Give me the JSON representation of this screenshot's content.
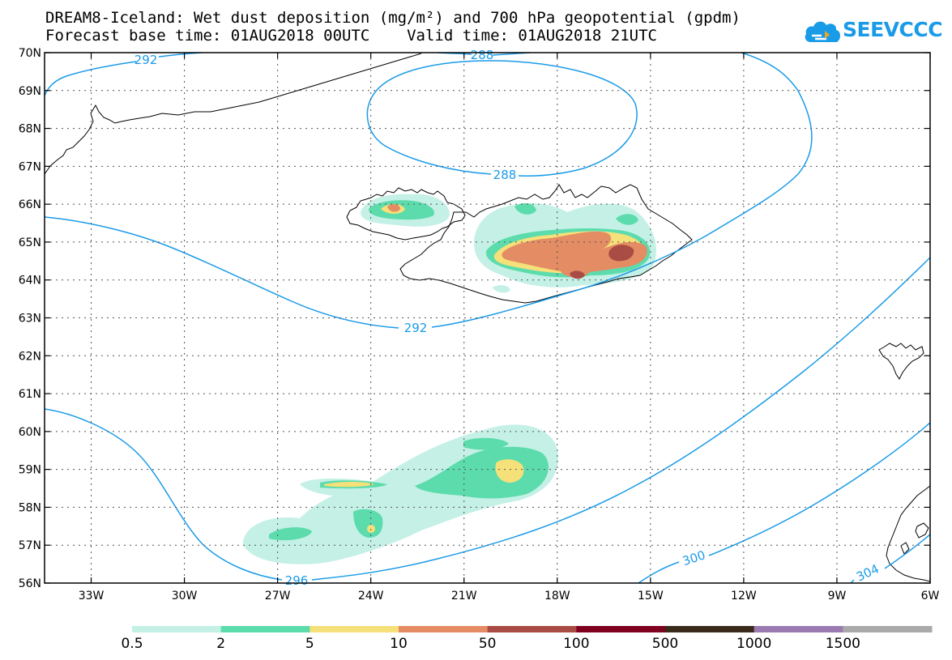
{
  "header": {
    "title": "DREAM8-Iceland: Wet dust deposition (mg/m²) and 700 hPa geopotential (gpdm)",
    "subtitle": "Forecast base time: 01AUG2018 00UTC    Valid time: 01AUG2018 21UTC"
  },
  "logo": {
    "text": "SEEVCCC",
    "color": "#1a9be8"
  },
  "map": {
    "lat_range": [
      56,
      70
    ],
    "lon_range": [
      -34.5,
      -6
    ],
    "lat_labels": [
      "56N",
      "57N",
      "58N",
      "59N",
      "60N",
      "61N",
      "62N",
      "63N",
      "64N",
      "65N",
      "66N",
      "67N",
      "68N",
      "69N",
      "70N"
    ],
    "lon_labels": [
      {
        "lon": -33,
        "label": "33W"
      },
      {
        "lon": -30,
        "label": "30W"
      },
      {
        "lon": -27,
        "label": "27W"
      },
      {
        "lon": -24,
        "label": "24W"
      },
      {
        "lon": -21,
        "label": "21W"
      },
      {
        "lon": -18,
        "label": "18W"
      },
      {
        "lon": -15,
        "label": "15W"
      },
      {
        "lon": -12,
        "label": "12W"
      },
      {
        "lon": -9,
        "label": "9W"
      },
      {
        "lon": -6,
        "label": "6W"
      }
    ],
    "contour_color": "#1a9be8",
    "contour_labels": [
      "292",
      "288",
      "288",
      "292",
      "296",
      "300",
      "304"
    ]
  },
  "legend": {
    "colors": [
      "#c4f0e6",
      "#5cdcac",
      "#f6e07a",
      "#e48c64",
      "#a84c44",
      "#800020",
      "#3a2a1a",
      "#9a7ab0",
      "#aaaaaa"
    ],
    "labels": [
      "0.5",
      "2",
      "5",
      "10",
      "50",
      "100",
      "500",
      "1000",
      "1500"
    ]
  }
}
